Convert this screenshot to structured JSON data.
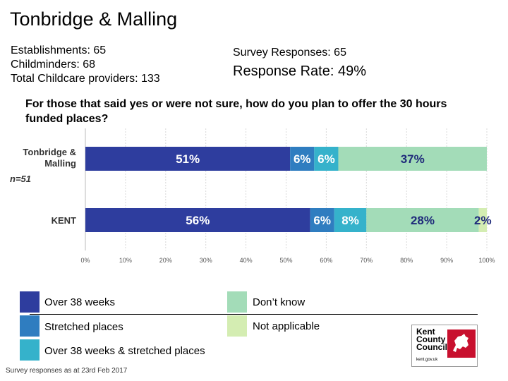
{
  "header": {
    "title": "Tonbridge & Malling",
    "establishments": "Establishments: 65",
    "childminders": "Childminders: 68",
    "total_providers": "Total Childcare providers: 133",
    "survey_responses": "Survey Responses: 65",
    "response_rate": "Response Rate: 49%"
  },
  "question": "For those that said yes or were not sure, how do you plan to offer the 30 hours funded places?",
  "chart_data": {
    "type": "bar",
    "orientation": "horizontal",
    "stacked": true,
    "categories": [
      "Tonbridge & Malling",
      "KENT"
    ],
    "category_notes": [
      "n=51",
      ""
    ],
    "series": [
      {
        "name": "Over 38 weeks",
        "color": "#2E3D9E",
        "values": [
          51,
          56
        ],
        "labels": [
          "51%",
          "56%"
        ]
      },
      {
        "name": "Stretched places",
        "color": "#2F7DC0",
        "values": [
          6,
          6
        ],
        "labels": [
          "6%",
          "6%"
        ]
      },
      {
        "name": "Over 38 weeks & stretched places",
        "color": "#35B2CB",
        "values": [
          6,
          8
        ],
        "labels": [
          "6%",
          "8%"
        ]
      },
      {
        "name": "Don't know",
        "color": "#A3DCB8",
        "values": [
          37,
          28
        ],
        "labels": [
          "37%",
          "28%"
        ]
      },
      {
        "name": "Not applicable",
        "color": "#D4EDB2",
        "values": [
          0,
          2
        ],
        "labels": [
          "",
          "2%"
        ]
      }
    ],
    "xlim": [
      0,
      100
    ],
    "xticks": [
      "0%",
      "10%",
      "20%",
      "30%",
      "40%",
      "50%",
      "60%",
      "70%",
      "80%",
      "90%",
      "100%"
    ],
    "grid": true
  },
  "legend": [
    {
      "label": "Over 38 weeks",
      "color": "#2E3D9E"
    },
    {
      "label": "Stretched places",
      "color": "#2F7DC0"
    },
    {
      "label": "Over 38 weeks & stretched places",
      "color": "#35B2CB"
    },
    {
      "label": "Don’t know",
      "color": "#A3DCB8"
    },
    {
      "label": "Not applicable",
      "color": "#D4EDB2"
    }
  ],
  "footer": "Survey responses as at 23rd Feb 2017",
  "logo": {
    "line1": "Kent",
    "line2": "County",
    "line3": "Council",
    "url": "kent.gov.uk"
  }
}
